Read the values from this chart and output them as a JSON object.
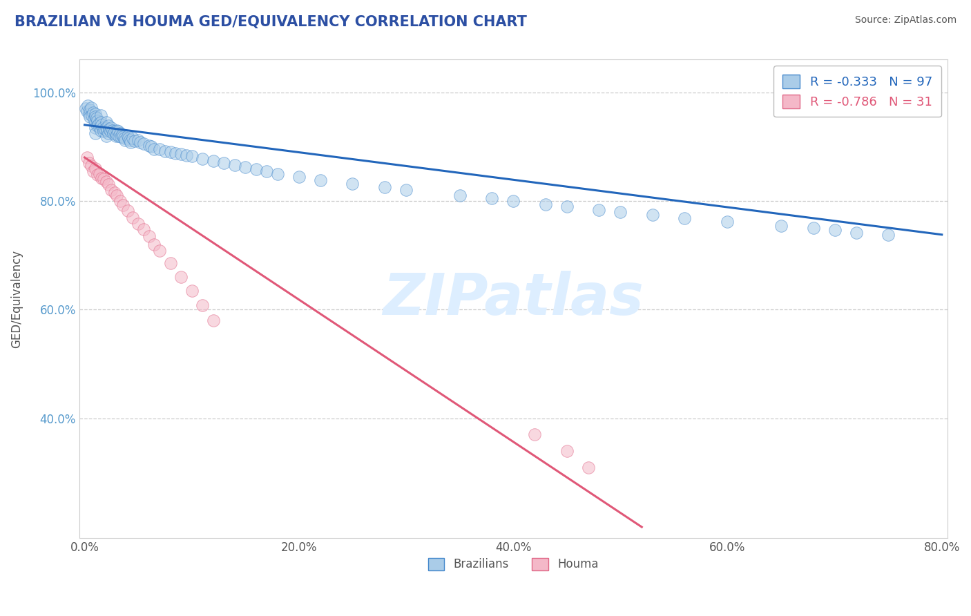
{
  "title": "BRAZILIAN VS HOUMA GED/EQUIVALENCY CORRELATION CHART",
  "source": "Source: ZipAtlas.com",
  "ylabel": "GED/Equivalency",
  "xmin": -0.005,
  "xmax": 0.805,
  "ymin": 0.18,
  "ymax": 1.06,
  "blue_R": -0.333,
  "blue_N": 97,
  "pink_R": -0.786,
  "pink_N": 31,
  "blue_fill": "#aacce8",
  "blue_edge": "#4488cc",
  "pink_fill": "#f4b8c8",
  "pink_edge": "#e06888",
  "blue_line_color": "#2266bb",
  "pink_line_color": "#e05878",
  "title_color": "#2c4fa3",
  "axis_color": "#555555",
  "ytick_color": "#5599cc",
  "grid_color": "#cccccc",
  "watermark_color": "#ddeeff",
  "blue_scatter_x": [
    0.001,
    0.002,
    0.003,
    0.004,
    0.005,
    0.005,
    0.006,
    0.007,
    0.008,
    0.009,
    0.01,
    0.01,
    0.01,
    0.01,
    0.01,
    0.011,
    0.012,
    0.012,
    0.013,
    0.014,
    0.015,
    0.015,
    0.015,
    0.016,
    0.017,
    0.018,
    0.019,
    0.02,
    0.02,
    0.02,
    0.021,
    0.022,
    0.022,
    0.023,
    0.024,
    0.025,
    0.026,
    0.027,
    0.028,
    0.029,
    0.03,
    0.03,
    0.031,
    0.032,
    0.033,
    0.034,
    0.035,
    0.036,
    0.037,
    0.038,
    0.04,
    0.041,
    0.042,
    0.043,
    0.045,
    0.047,
    0.05,
    0.052,
    0.055,
    0.06,
    0.062,
    0.065,
    0.07,
    0.075,
    0.08,
    0.085,
    0.09,
    0.095,
    0.1,
    0.11,
    0.12,
    0.13,
    0.14,
    0.15,
    0.16,
    0.17,
    0.18,
    0.2,
    0.22,
    0.25,
    0.28,
    0.3,
    0.35,
    0.38,
    0.4,
    0.43,
    0.45,
    0.48,
    0.5,
    0.53,
    0.56,
    0.6,
    0.65,
    0.68,
    0.7,
    0.72,
    0.75
  ],
  "blue_scatter_y": [
    0.97,
    0.965,
    0.975,
    0.96,
    0.968,
    0.955,
    0.972,
    0.958,
    0.963,
    0.95,
    0.96,
    0.955,
    0.945,
    0.935,
    0.925,
    0.952,
    0.948,
    0.938,
    0.942,
    0.936,
    0.958,
    0.945,
    0.93,
    0.94,
    0.935,
    0.928,
    0.932,
    0.945,
    0.935,
    0.92,
    0.93,
    0.938,
    0.925,
    0.932,
    0.928,
    0.935,
    0.93,
    0.925,
    0.928,
    0.92,
    0.93,
    0.922,
    0.928,
    0.92,
    0.925,
    0.918,
    0.922,
    0.918,
    0.915,
    0.912,
    0.92,
    0.916,
    0.912,
    0.908,
    0.915,
    0.91,
    0.912,
    0.908,
    0.905,
    0.902,
    0.9,
    0.895,
    0.895,
    0.892,
    0.89,
    0.888,
    0.886,
    0.884,
    0.882,
    0.878,
    0.874,
    0.87,
    0.866,
    0.862,
    0.858,
    0.854,
    0.85,
    0.844,
    0.838,
    0.832,
    0.826,
    0.82,
    0.81,
    0.805,
    0.8,
    0.794,
    0.79,
    0.784,
    0.78,
    0.774,
    0.768,
    0.762,
    0.754,
    0.75,
    0.746,
    0.742,
    0.738
  ],
  "pink_scatter_x": [
    0.002,
    0.004,
    0.006,
    0.008,
    0.01,
    0.012,
    0.014,
    0.016,
    0.018,
    0.02,
    0.022,
    0.025,
    0.028,
    0.03,
    0.033,
    0.036,
    0.04,
    0.045,
    0.05,
    0.055,
    0.06,
    0.065,
    0.07,
    0.08,
    0.09,
    0.1,
    0.11,
    0.12,
    0.42,
    0.45,
    0.47
  ],
  "pink_scatter_y": [
    0.88,
    0.87,
    0.865,
    0.855,
    0.86,
    0.848,
    0.85,
    0.842,
    0.84,
    0.835,
    0.83,
    0.82,
    0.815,
    0.81,
    0.8,
    0.792,
    0.782,
    0.77,
    0.758,
    0.748,
    0.735,
    0.72,
    0.708,
    0.685,
    0.66,
    0.635,
    0.608,
    0.58,
    0.37,
    0.34,
    0.31
  ],
  "blue_trend_x": [
    0.0,
    0.8
  ],
  "blue_trend_y": [
    0.94,
    0.738
  ],
  "pink_trend_x": [
    0.0,
    0.52
  ],
  "pink_trend_y": [
    0.88,
    0.2
  ]
}
